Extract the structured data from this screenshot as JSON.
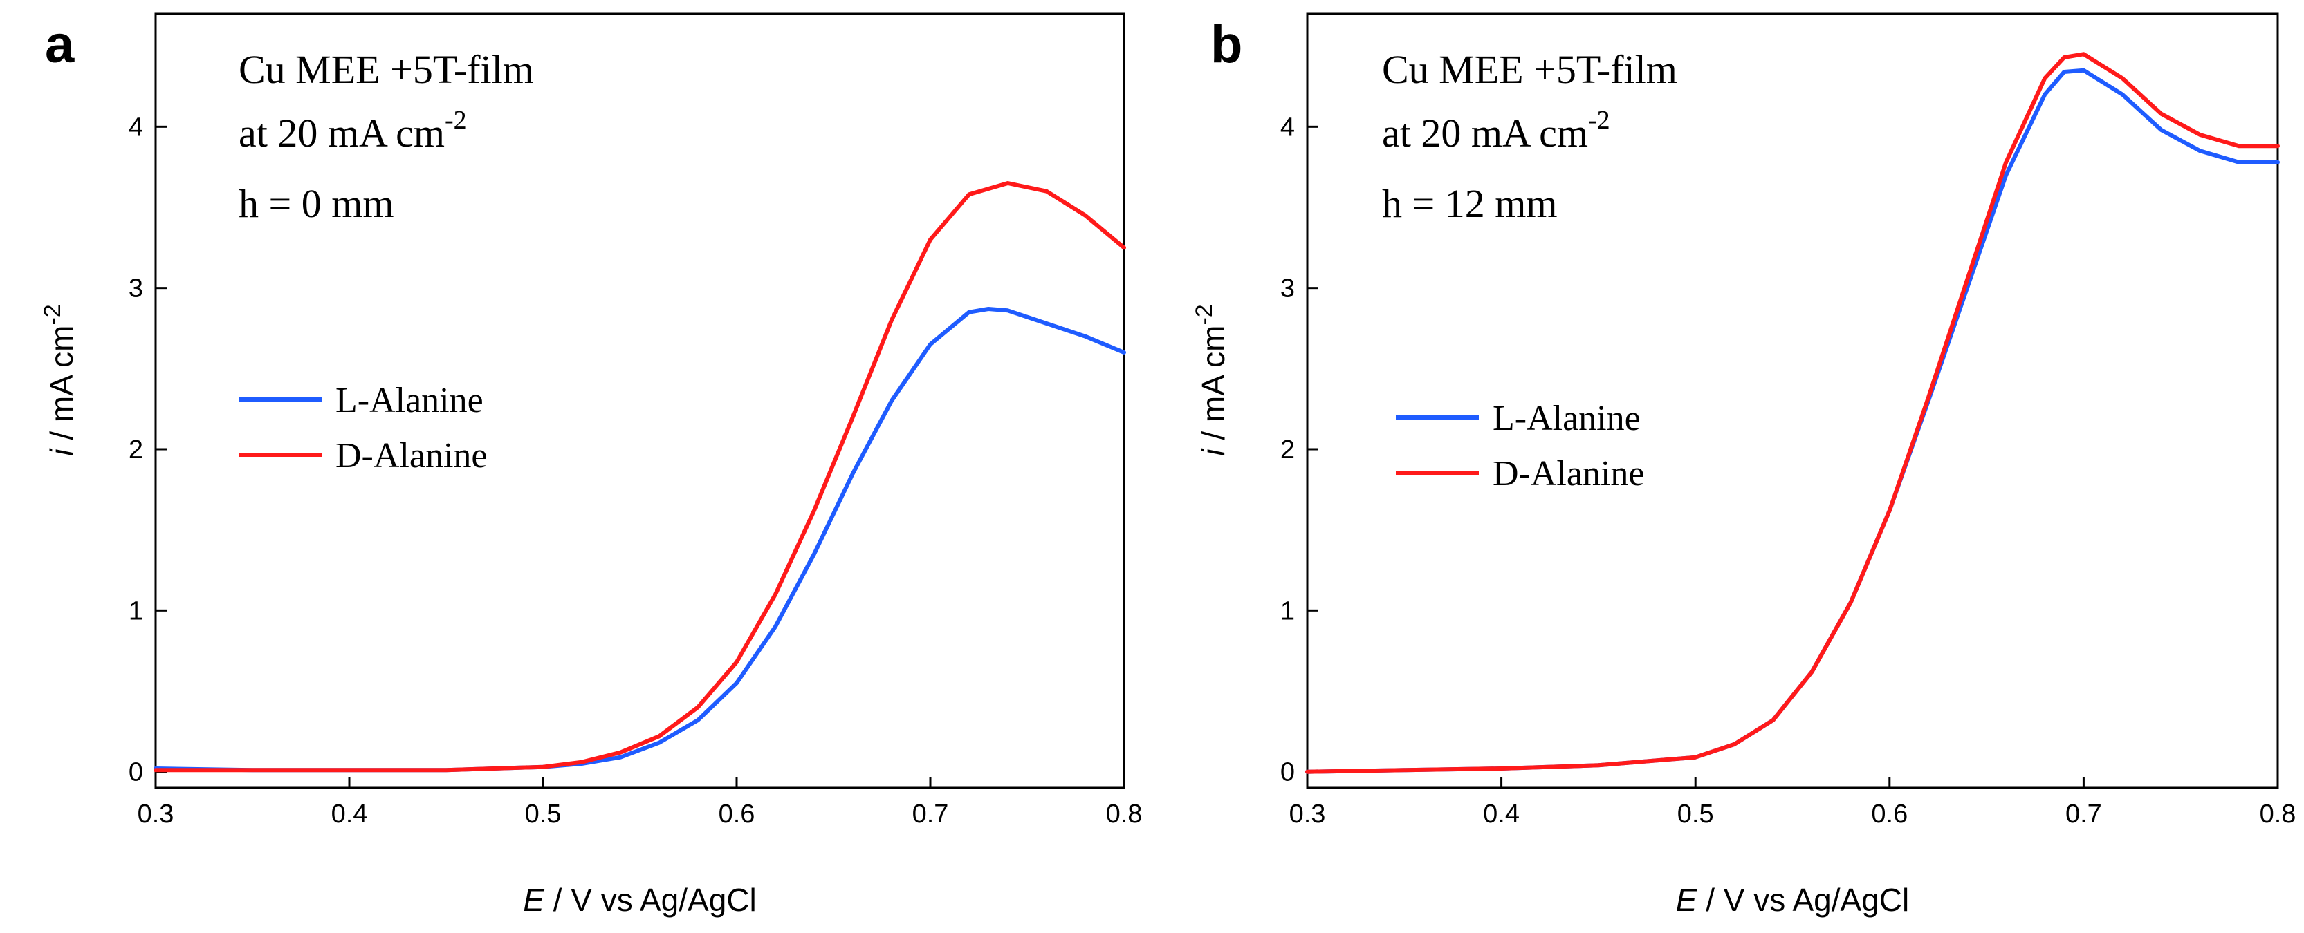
{
  "chart_data": [
    {
      "type": "line",
      "panel": "a",
      "annotation": [
        "Cu MEE +5T-film",
        "at 20 mA cm",
        "-2",
        "h = 0 mm"
      ],
      "xlabel": {
        "italic": "E",
        "rest": " / V vs Ag/AgCl"
      },
      "ylabel": {
        "italic": "i",
        "rest": " / mA cm",
        "sup": "-2"
      },
      "xlim": [
        0.3,
        0.8
      ],
      "ylim": [
        -0.1,
        4.7
      ],
      "xticks": [
        0.3,
        0.4,
        0.5,
        0.6,
        0.7,
        0.8
      ],
      "xtick_labels": [
        "0.3",
        "0.4",
        "0.5",
        "0.6",
        "0.7",
        "0.8"
      ],
      "yticks": [
        0,
        1,
        2,
        3,
        4
      ],
      "ytick_labels": [
        "0",
        "1",
        "2",
        "3",
        "4"
      ],
      "legend": [
        "L-Alanine",
        "D-Alanine"
      ],
      "series": [
        {
          "name": "L-Alanine",
          "color": "#1f5cff",
          "x": [
            0.3,
            0.35,
            0.4,
            0.45,
            0.5,
            0.52,
            0.54,
            0.56,
            0.58,
            0.6,
            0.62,
            0.64,
            0.66,
            0.68,
            0.7,
            0.72,
            0.73,
            0.74,
            0.76,
            0.78,
            0.8
          ],
          "y": [
            0.02,
            0.01,
            0.01,
            0.01,
            0.03,
            0.05,
            0.09,
            0.18,
            0.32,
            0.55,
            0.9,
            1.35,
            1.85,
            2.3,
            2.65,
            2.85,
            2.87,
            2.86,
            2.78,
            2.7,
            2.6
          ]
        },
        {
          "name": "D-Alanine",
          "color": "#ff1a1a",
          "x": [
            0.3,
            0.35,
            0.4,
            0.45,
            0.5,
            0.52,
            0.54,
            0.56,
            0.58,
            0.6,
            0.62,
            0.64,
            0.66,
            0.68,
            0.7,
            0.72,
            0.74,
            0.76,
            0.78,
            0.8
          ],
          "y": [
            0.01,
            0.01,
            0.01,
            0.01,
            0.03,
            0.06,
            0.12,
            0.22,
            0.4,
            0.68,
            1.1,
            1.62,
            2.2,
            2.8,
            3.3,
            3.58,
            3.65,
            3.6,
            3.45,
            3.25
          ]
        }
      ]
    },
    {
      "type": "line",
      "panel": "b",
      "annotation": [
        "Cu MEE +5T-film",
        "at 20 mA cm",
        "-2",
        "h = 12 mm"
      ],
      "xlabel": {
        "italic": "E",
        "rest": " / V vs Ag/AgCl"
      },
      "ylabel": {
        "italic": "i",
        "rest": " / mA cm",
        "sup": "-2"
      },
      "xlim": [
        0.3,
        0.8
      ],
      "ylim": [
        -0.1,
        4.7
      ],
      "xticks": [
        0.3,
        0.4,
        0.5,
        0.6,
        0.7,
        0.8
      ],
      "xtick_labels": [
        "0.3",
        "0.4",
        "0.5",
        "0.6",
        "0.7",
        "0.8"
      ],
      "yticks": [
        0,
        1,
        2,
        3,
        4
      ],
      "ytick_labels": [
        "0",
        "1",
        "2",
        "3",
        "4"
      ],
      "legend": [
        "L-Alanine",
        "D-Alanine"
      ],
      "series": [
        {
          "name": "L-Alanine",
          "color": "#1f5cff",
          "x": [
            0.3,
            0.35,
            0.4,
            0.45,
            0.5,
            0.52,
            0.54,
            0.56,
            0.58,
            0.6,
            0.62,
            0.64,
            0.66,
            0.68,
            0.69,
            0.7,
            0.72,
            0.74,
            0.76,
            0.78,
            0.8
          ],
          "y": [
            0.0,
            0.01,
            0.02,
            0.04,
            0.09,
            0.17,
            0.32,
            0.62,
            1.05,
            1.62,
            2.3,
            3.0,
            3.7,
            4.2,
            4.34,
            4.35,
            4.2,
            3.98,
            3.85,
            3.78,
            3.78
          ]
        },
        {
          "name": "D-Alanine",
          "color": "#ff1a1a",
          "x": [
            0.3,
            0.35,
            0.4,
            0.45,
            0.5,
            0.52,
            0.54,
            0.56,
            0.58,
            0.6,
            0.62,
            0.64,
            0.66,
            0.68,
            0.69,
            0.7,
            0.72,
            0.74,
            0.76,
            0.78,
            0.8
          ],
          "y": [
            0.0,
            0.01,
            0.02,
            0.04,
            0.09,
            0.17,
            0.32,
            0.62,
            1.05,
            1.62,
            2.32,
            3.05,
            3.78,
            4.3,
            4.43,
            4.45,
            4.3,
            4.08,
            3.95,
            3.88,
            3.88
          ]
        }
      ]
    }
  ]
}
